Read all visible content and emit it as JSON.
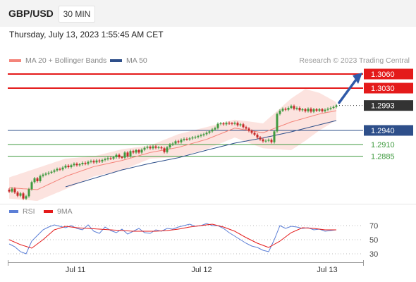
{
  "header": {
    "symbol": "GBP/USD",
    "timeframe": "30 MIN"
  },
  "timestamp": "Thursday, July 13, 2023 1:55:45 AM CET",
  "legend": {
    "ma20": {
      "label": "MA 20 + Bollinger Bands",
      "color": "#f4847a"
    },
    "ma50": {
      "label": "MA 50",
      "color": "#2e4f8a"
    },
    "credit": "Research © 2023 Trading Central"
  },
  "rsi_legend": {
    "rsi": {
      "label": "RSI",
      "color": "#5c7fd6"
    },
    "ma9": {
      "label": "9MA",
      "color": "#e41a1a"
    }
  },
  "colors": {
    "resistance": "#e41a1a",
    "support_main": "#2e4f8a",
    "support_minor": "#3f9a3f",
    "last_price": "#333333",
    "arrow": "#2f5aa8",
    "up_candle": "#3f9a3f",
    "down_candle": "#c62828"
  },
  "chart_data": [
    {
      "type": "candlestick",
      "title": "GBP/USD 30 MIN",
      "x_ticks": [
        "Jul 11",
        "Jul 12",
        "Jul 13"
      ],
      "ylim": [
        1.279,
        1.3075
      ],
      "grid": false,
      "series": [
        {
          "name": "Price",
          "close": [
            1.281,
            1.2816,
            1.2808,
            1.2801,
            1.2806,
            1.2795,
            1.28,
            1.2815,
            1.283,
            1.2838,
            1.2832,
            1.2843,
            1.2846,
            1.2848,
            1.285,
            1.2852,
            1.2855,
            1.2858,
            1.2857,
            1.2861,
            1.2865,
            1.2862,
            1.2866,
            1.2869,
            1.2866,
            1.2868,
            1.2871,
            1.2869,
            1.2873,
            1.2875,
            1.2872,
            1.2876,
            1.2874,
            1.2877,
            1.2879,
            1.2881,
            1.288,
            1.2883,
            1.2888,
            1.2883,
            1.2882,
            1.2893,
            1.2885,
            1.2896,
            1.2893,
            1.2898,
            1.2893,
            1.2899,
            1.2903,
            1.2905,
            1.2902,
            1.2906,
            1.2903,
            1.2904,
            1.2902,
            1.2894,
            1.2904,
            1.291,
            1.2912,
            1.2917,
            1.2915,
            1.292,
            1.2922,
            1.2921,
            1.2923,
            1.2925,
            1.2926,
            1.2928,
            1.293,
            1.2932,
            1.2935,
            1.2938,
            1.2942,
            1.2945,
            1.2954,
            1.2955,
            1.2953,
            1.2956,
            1.2955,
            1.2954,
            1.2956,
            1.2951,
            1.2953,
            1.2947,
            1.2944,
            1.2939,
            1.2935,
            1.2931,
            1.2925,
            1.2921,
            1.2917,
            1.2918,
            1.292,
            1.2915,
            1.2938,
            1.2975,
            1.2982,
            1.2986,
            1.2984,
            1.2988,
            1.2992,
            1.2986,
            1.2988,
            1.2983,
            1.2985,
            1.2981,
            1.2986,
            1.298,
            1.2985,
            1.2982,
            1.2985,
            1.2981,
            1.2984,
            1.2986,
            1.2988,
            1.299,
            1.2993
          ]
        },
        {
          "name": "MA 20",
          "values": [
            [
              0,
              1.2818
            ],
            [
              10,
              1.2814
            ],
            [
              20,
              1.2842
            ],
            [
              30,
              1.2863
            ],
            [
              40,
              1.2876
            ],
            [
              50,
              1.2893
            ],
            [
              60,
              1.2904
            ],
            [
              70,
              1.2921
            ],
            [
              80,
              1.2945
            ],
            [
              90,
              1.2935
            ],
            [
              100,
              1.2958
            ],
            [
              110,
              1.2975
            ],
            [
              116,
              1.2982
            ]
          ]
        },
        {
          "name": "MA 50",
          "values": [
            [
              20,
              1.282
            ],
            [
              30,
              1.2838
            ],
            [
              40,
              1.2856
            ],
            [
              50,
              1.287
            ],
            [
              60,
              1.2882
            ],
            [
              70,
              1.2898
            ],
            [
              80,
              1.2913
            ],
            [
              90,
              1.2924
            ],
            [
              100,
              1.2937
            ],
            [
              110,
              1.2952
            ],
            [
              116,
              1.2961
            ]
          ]
        },
        {
          "name": "Bollinger Upper",
          "values": [
            [
              0,
              1.284
            ],
            [
              10,
              1.286
            ],
            [
              20,
              1.288
            ],
            [
              30,
              1.2885
            ],
            [
              40,
              1.29
            ],
            [
              50,
              1.2908
            ],
            [
              60,
              1.2932
            ],
            [
              70,
              1.2947
            ],
            [
              80,
              1.2963
            ],
            [
              90,
              1.2955
            ],
            [
              100,
              1.3008
            ],
            [
              105,
              1.3028
            ],
            [
              110,
              1.302
            ],
            [
              116,
              1.3
            ]
          ]
        },
        {
          "name": "Bollinger Lower",
          "values": [
            [
              0,
              1.2795
            ],
            [
              10,
              1.279
            ],
            [
              20,
              1.2815
            ],
            [
              30,
              1.2842
            ],
            [
              40,
              1.2855
            ],
            [
              50,
              1.288
            ],
            [
              60,
              1.2883
            ],
            [
              70,
              1.29
            ],
            [
              80,
              1.2925
            ],
            [
              90,
              1.2902
            ],
            [
              100,
              1.2898
            ],
            [
              105,
              1.2918
            ],
            [
              110,
              1.294
            ],
            [
              116,
              1.2962
            ]
          ]
        }
      ],
      "levels": [
        {
          "value": 1.306,
          "label": "1.3060",
          "kind": "resistance"
        },
        {
          "value": 1.303,
          "label": "1.3030",
          "kind": "resistance"
        },
        {
          "value": 1.2993,
          "label": "1.2993",
          "kind": "last_price"
        },
        {
          "value": 1.294,
          "label": "1.2940",
          "kind": "support_main"
        },
        {
          "value": 1.291,
          "label": "1.2910",
          "kind": "support_minor"
        },
        {
          "value": 1.2885,
          "label": "1.2885",
          "kind": "support_minor"
        }
      ],
      "annotation": "upward arrow toward 1.3060"
    },
    {
      "type": "line",
      "title": "RSI",
      "ylim": [
        20,
        80
      ],
      "y_ticks": [
        "70",
        "50",
        "30"
      ],
      "grid": true,
      "series": [
        {
          "name": "RSI",
          "values": [
            [
              0,
              44
            ],
            [
              2,
              40
            ],
            [
              4,
              33
            ],
            [
              6,
              30
            ],
            [
              8,
              48
            ],
            [
              10,
              56
            ],
            [
              12,
              64
            ],
            [
              14,
              68
            ],
            [
              16,
              71
            ],
            [
              18,
              69
            ],
            [
              20,
              67
            ],
            [
              22,
              70
            ],
            [
              24,
              66
            ],
            [
              26,
              64
            ],
            [
              28,
              71
            ],
            [
              30,
              62
            ],
            [
              32,
              59
            ],
            [
              34,
              68
            ],
            [
              36,
              63
            ],
            [
              38,
              60
            ],
            [
              40,
              65
            ],
            [
              42,
              58
            ],
            [
              44,
              62
            ],
            [
              46,
              66
            ],
            [
              48,
              60
            ],
            [
              50,
              59
            ],
            [
              52,
              64
            ],
            [
              54,
              62
            ],
            [
              56,
              66
            ],
            [
              58,
              65
            ],
            [
              60,
              68
            ],
            [
              62,
              70
            ],
            [
              64,
              72
            ],
            [
              66,
              69
            ],
            [
              68,
              70
            ],
            [
              70,
              73
            ],
            [
              72,
              70
            ],
            [
              74,
              70
            ],
            [
              76,
              66
            ],
            [
              78,
              60
            ],
            [
              80,
              55
            ],
            [
              82,
              50
            ],
            [
              84,
              45
            ],
            [
              86,
              41
            ],
            [
              88,
              39
            ],
            [
              90,
              35
            ],
            [
              92,
              33
            ],
            [
              94,
              50
            ],
            [
              96,
              70
            ],
            [
              98,
              66
            ],
            [
              100,
              69
            ],
            [
              102,
              68
            ],
            [
              104,
              66
            ],
            [
              106,
              67
            ],
            [
              108,
              64
            ],
            [
              110,
              65
            ],
            [
              112,
              62
            ],
            [
              114,
              63
            ],
            [
              116,
              64
            ]
          ]
        },
        {
          "name": "9MA",
          "values": [
            [
              0,
              50
            ],
            [
              4,
              43
            ],
            [
              8,
              38
            ],
            [
              12,
              50
            ],
            [
              16,
              64
            ],
            [
              20,
              69
            ],
            [
              24,
              67
            ],
            [
              28,
              66
            ],
            [
              32,
              65
            ],
            [
              36,
              64
            ],
            [
              40,
              63
            ],
            [
              44,
              62
            ],
            [
              48,
              62
            ],
            [
              52,
              62
            ],
            [
              56,
              63
            ],
            [
              60,
              65
            ],
            [
              64,
              68
            ],
            [
              68,
              70
            ],
            [
              72,
              72
            ],
            [
              76,
              68
            ],
            [
              80,
              62
            ],
            [
              84,
              53
            ],
            [
              88,
              45
            ],
            [
              92,
              39
            ],
            [
              96,
              48
            ],
            [
              100,
              60
            ],
            [
              104,
              67
            ],
            [
              108,
              66
            ],
            [
              112,
              64
            ],
            [
              116,
              64
            ]
          ]
        }
      ]
    }
  ]
}
